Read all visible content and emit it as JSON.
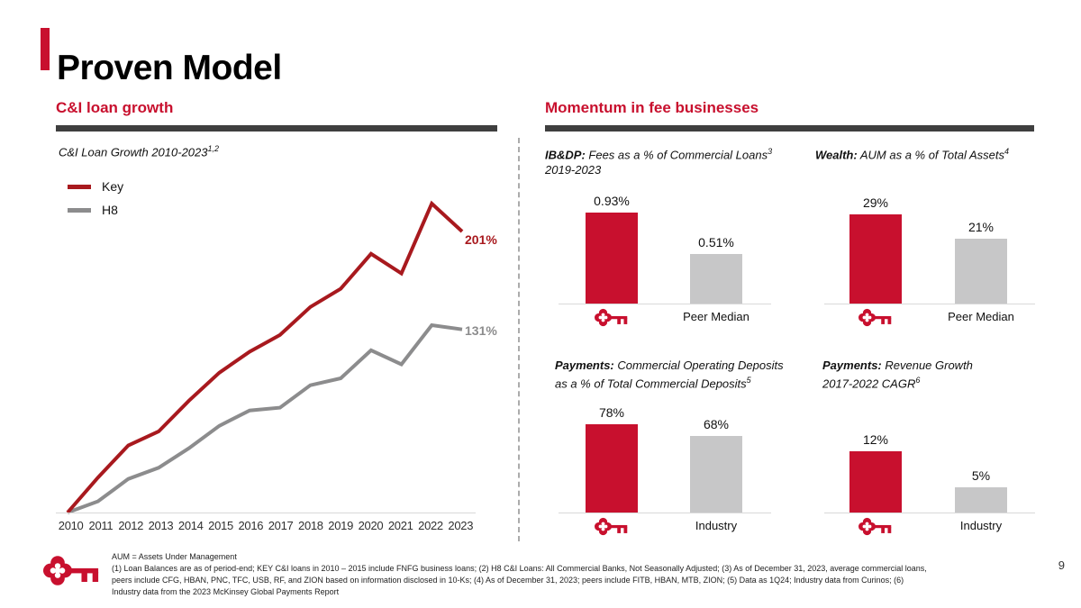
{
  "page": {
    "title": "Proven Model",
    "page_number": "9"
  },
  "colors": {
    "brand_red": "#C8102E",
    "line_red": "#A8191E",
    "line_gray": "#8C8C8D",
    "bar_gray": "#C7C7C8",
    "rule_gray": "#3F3F3F"
  },
  "left_section": {
    "header": "C&I loan growth",
    "chart_label": "C&I Loan Growth 2010-2023",
    "chart_label_sup": "1,2"
  },
  "right_section": {
    "header": "Momentum in fee businesses"
  },
  "chart_data": [
    {
      "id": "ci-loan-growth",
      "type": "line",
      "title": "C&I Loan Growth 2010-2023",
      "footnote_refs": "1,2",
      "x": [
        "2010",
        "2011",
        "2012",
        "2013",
        "2014",
        "2015",
        "2016",
        "2017",
        "2018",
        "2019",
        "2020",
        "2021",
        "2022",
        "2023"
      ],
      "series": [
        {
          "name": "Key",
          "color": "#A8191E",
          "values": [
            0,
            25,
            48,
            58,
            80,
            100,
            115,
            127,
            147,
            160,
            185,
            171,
            221,
            201
          ],
          "end_label": "201%"
        },
        {
          "name": "H8",
          "color": "#8C8C8D",
          "values": [
            0,
            8,
            24,
            32,
            46,
            62,
            73,
            75,
            91,
            96,
            116,
            106,
            134,
            131
          ],
          "end_label": "131%"
        }
      ],
      "ylim": [
        0,
        230
      ],
      "grid": false,
      "legend_position": "top-left"
    },
    {
      "id": "ibdp-fees",
      "type": "bar",
      "title_prefix": "IB&DP:",
      "title_line1": " Fees as a % of Commercial Loans",
      "line1_sup": "3",
      "title_line2": "2019-2023",
      "line2_sup": "",
      "categories": [
        "Key",
        "Peer Median"
      ],
      "values": [
        0.93,
        0.51
      ],
      "value_labels": [
        "0.93%",
        "0.51%"
      ],
      "max_value": 0.93,
      "cat_label": "Peer Median"
    },
    {
      "id": "wealth-aum",
      "type": "bar",
      "title_prefix": "Wealth:",
      "title_line1": " AUM as a % of Total Assets",
      "line1_sup": "4",
      "title_line2": "",
      "line2_sup": "",
      "categories": [
        "Key",
        "Peer Median"
      ],
      "values": [
        29,
        21
      ],
      "value_labels": [
        "29%",
        "21%"
      ],
      "max_value": 29,
      "cat_label": "Peer Median"
    },
    {
      "id": "payments-deposits",
      "type": "bar",
      "title_prefix": "Payments:",
      "title_line1": " Commercial Operating Deposits",
      "line1_sup": "",
      "title_line2": "as a % of Total Commercial Deposits",
      "line2_sup": "5",
      "categories": [
        "Key",
        "Industry"
      ],
      "values": [
        78,
        68
      ],
      "value_labels": [
        "78%",
        "68%"
      ],
      "max_value": 78,
      "cat_label": "Industry"
    },
    {
      "id": "payments-revenue",
      "type": "bar",
      "title_prefix": "Payments:",
      "title_line1": " Revenue Growth",
      "line1_sup": "",
      "title_line2": "2017-2022 CAGR",
      "line2_sup": "6",
      "categories": [
        "Key",
        "Industry"
      ],
      "values": [
        12,
        5
      ],
      "value_labels": [
        "12%",
        "5%"
      ],
      "max_value": 12,
      "cat_label": "Industry"
    }
  ],
  "footer": {
    "lines": [
      "AUM = Assets Under Management",
      "(1) Loan Balances are as of period-end; KEY C&I loans in 2010 – 2015 include FNFG business loans; (2) H8 C&I Loans: All Commercial Banks, Not Seasonally Adjusted; (3) As of December 31, 2023, average commercial loans,",
      "peers include CFG, HBAN, PNC, TFC, USB, RF, and ZION based on information disclosed in 10-Ks; (4) As of December 31, 2023; peers include FITB, HBAN, MTB, ZION; (5) Data as 1Q24; Industry data from Curinos; (6)",
      "Industry data from the 2023 McKinsey Global Payments Report"
    ]
  }
}
